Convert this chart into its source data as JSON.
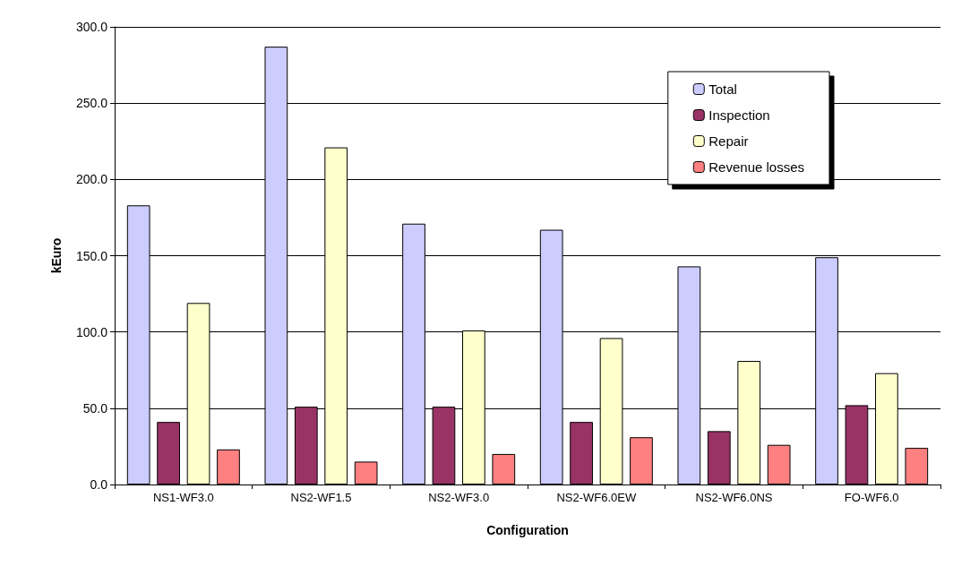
{
  "chart_data": {
    "type": "bar",
    "xlabel": "Configuration",
    "ylabel": "kEuro",
    "categories": [
      "NS1-WF3.0",
      "NS2-WF1.5",
      "NS2-WF3.0",
      "NS2-WF6.0EW",
      "NS2-WF6.0NS",
      "FO-WF6.0"
    ],
    "series": [
      {
        "name": "Total",
        "color": "#ccccff",
        "values": [
          183,
          287,
          171,
          167,
          143,
          149
        ]
      },
      {
        "name": "Inspection",
        "color": "#993366",
        "values": [
          41,
          51,
          51,
          41,
          35,
          52
        ]
      },
      {
        "name": "Repair",
        "color": "#ffffcc",
        "values": [
          119,
          221,
          101,
          96,
          81,
          73
        ]
      },
      {
        "name": "Revenue losses",
        "color": "#ff8080",
        "values": [
          23,
          15,
          20,
          31,
          26,
          24
        ]
      }
    ],
    "ylim": [
      0,
      300
    ],
    "yticks": [
      {
        "value": 0,
        "label": "0.0"
      },
      {
        "value": 50,
        "label": "50.0"
      },
      {
        "value": 100,
        "label": "100.0"
      },
      {
        "value": 150,
        "label": "150.0"
      },
      {
        "value": 200,
        "label": "200.0"
      },
      {
        "value": 250,
        "label": "250.0"
      },
      {
        "value": 300,
        "label": "300.0"
      }
    ],
    "grid": "y",
    "legend": "top right"
  }
}
